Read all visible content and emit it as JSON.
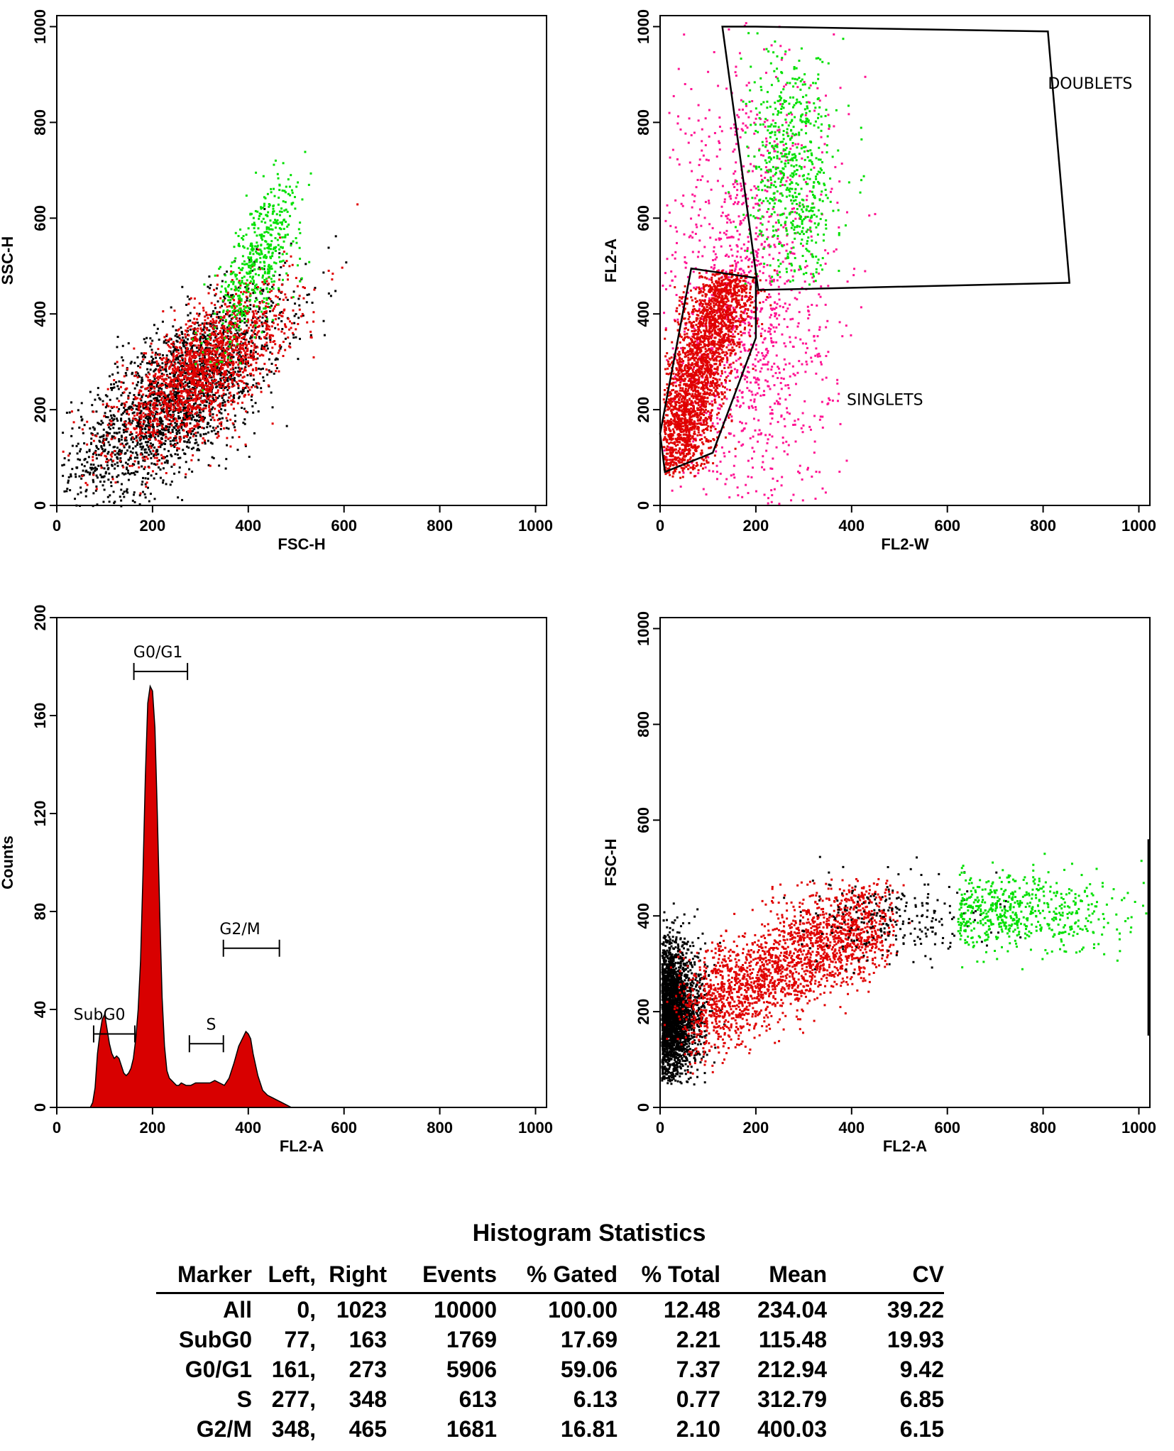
{
  "colors": {
    "red": "#e00000",
    "black": "#000000",
    "green": "#00e000",
    "magenta": "#ff1493",
    "fill": "#d80000"
  },
  "chart_data": [
    {
      "id": "p1",
      "type": "scatter",
      "xlabel": "FSC-H",
      "ylabel": "SSC-H",
      "xlim": [
        0,
        1023
      ],
      "ylim": [
        0,
        1023
      ],
      "xticks": [
        0,
        200,
        400,
        600,
        800,
        1000
      ],
      "yticks": [
        0,
        200,
        400,
        600,
        800,
        1000
      ],
      "series": [
        {
          "name": "black population",
          "color": "black",
          "cluster": {
            "x": 250,
            "y": 230,
            "sx": 110,
            "sy": 140
          }
        },
        {
          "name": "red population",
          "color": "red",
          "cluster": {
            "x": 300,
            "y": 280,
            "sx": 90,
            "sy": 110
          }
        },
        {
          "name": "green population",
          "color": "green",
          "cluster": {
            "x": 420,
            "y": 520,
            "sx": 45,
            "sy": 110
          }
        }
      ]
    },
    {
      "id": "p2",
      "type": "scatter",
      "xlabel": "FL2-W",
      "ylabel": "FL2-A",
      "xlim": [
        0,
        1023
      ],
      "ylim": [
        0,
        1023
      ],
      "xticks": [
        0,
        200,
        400,
        600,
        800,
        1000
      ],
      "yticks": [
        0,
        200,
        400,
        600,
        800,
        1000
      ],
      "gates": [
        {
          "name": "DOUBLETS",
          "label_pos": [
            810,
            870
          ],
          "polygon": [
            [
              130,
              1000
            ],
            [
              200,
              1000
            ],
            [
              810,
              990
            ],
            [
              855,
              465
            ],
            [
              205,
              450
            ]
          ]
        },
        {
          "name": "SINGLETS",
          "label_pos": [
            390,
            210
          ],
          "polygon": [
            [
              10,
              70
            ],
            [
              110,
              110
            ],
            [
              200,
              350
            ],
            [
              200,
              475
            ],
            [
              65,
              495
            ],
            [
              0,
              150
            ]
          ]
        }
      ],
      "series": [
        {
          "name": "singlets",
          "color": "red"
        },
        {
          "name": "doublets",
          "color": "green"
        },
        {
          "name": "other events",
          "color": "magenta"
        }
      ]
    },
    {
      "id": "p3",
      "type": "area",
      "xlabel": "FL2-A",
      "ylabel": "Counts",
      "xlim": [
        0,
        1023
      ],
      "ylim": [
        0,
        200
      ],
      "xticks": [
        0,
        200,
        400,
        600,
        800,
        1000
      ],
      "yticks": [
        0,
        40,
        80,
        120,
        160,
        200
      ],
      "x": [
        60,
        70,
        75,
        80,
        85,
        90,
        95,
        100,
        105,
        110,
        115,
        120,
        125,
        130,
        135,
        140,
        145,
        150,
        155,
        160,
        165,
        170,
        175,
        180,
        185,
        190,
        195,
        200,
        205,
        210,
        215,
        220,
        225,
        230,
        235,
        240,
        245,
        250,
        255,
        260,
        270,
        280,
        290,
        300,
        310,
        320,
        330,
        340,
        350,
        360,
        370,
        380,
        390,
        395,
        400,
        405,
        410,
        420,
        430,
        440,
        450,
        460,
        470,
        480,
        490,
        500,
        520,
        1023
      ],
      "values": [
        0,
        0,
        2,
        8,
        22,
        30,
        36,
        38,
        32,
        26,
        22,
        20,
        21,
        20,
        17,
        14,
        13,
        14,
        16,
        20,
        28,
        40,
        60,
        95,
        135,
        165,
        172,
        170,
        155,
        120,
        80,
        45,
        25,
        15,
        12,
        11,
        10,
        9,
        9,
        10,
        9,
        9,
        10,
        10,
        10,
        10,
        11,
        10,
        9,
        12,
        18,
        25,
        29,
        31,
        30,
        28,
        22,
        13,
        7,
        5,
        4,
        3,
        2,
        1,
        0,
        0,
        0,
        0
      ],
      "markers": [
        {
          "name": "SubG0",
          "left": 77,
          "right": 163,
          "height": 30,
          "label_x": 35
        },
        {
          "name": "G0/G1",
          "left": 161,
          "right": 273,
          "height": 178,
          "label_x": 160
        },
        {
          "name": "S",
          "left": 277,
          "right": 348,
          "height": 26,
          "label_x": 312
        },
        {
          "name": "G2/M",
          "left": 348,
          "right": 465,
          "height": 65,
          "label_x": 340
        }
      ]
    },
    {
      "id": "p4",
      "type": "scatter",
      "xlabel": "FL2-A",
      "ylabel": "FSC-H",
      "xlim": [
        0,
        1023
      ],
      "ylim": [
        0,
        1023
      ],
      "xticks": [
        0,
        200,
        400,
        600,
        800,
        1000
      ],
      "yticks": [
        0,
        200,
        400,
        600,
        800,
        1000
      ],
      "series": [
        {
          "name": "black population",
          "color": "black",
          "cluster": {
            "x": 40,
            "y": 200,
            "sx": 30,
            "sy": 70
          }
        },
        {
          "name": "red population",
          "color": "red",
          "cluster": {
            "x": 260,
            "y": 280,
            "sx": 110,
            "sy": 70
          }
        },
        {
          "name": "green population",
          "color": "green",
          "cluster": {
            "x": 700,
            "y": 410,
            "sx": 150,
            "sy": 40
          }
        }
      ]
    }
  ],
  "stats": {
    "title": "Histogram Statistics",
    "headers": [
      "Marker",
      "Left,",
      "Right",
      "Events",
      "% Gated",
      "% Total",
      "Mean",
      "CV"
    ],
    "rows": [
      [
        "All",
        "0,",
        "1023",
        "10000",
        "100.00",
        "12.48",
        "234.04",
        "39.22"
      ],
      [
        "SubG0",
        "77,",
        "163",
        "1769",
        "17.69",
        "2.21",
        "115.48",
        "19.93"
      ],
      [
        "G0/G1",
        "161,",
        "273",
        "5906",
        "59.06",
        "7.37",
        "212.94",
        "9.42"
      ],
      [
        "S",
        "277,",
        "348",
        "613",
        "6.13",
        "0.77",
        "312.79",
        "6.85"
      ],
      [
        "G2/M",
        "348,",
        "465",
        "1681",
        "16.81",
        "2.10",
        "400.03",
        "6.15"
      ]
    ]
  }
}
